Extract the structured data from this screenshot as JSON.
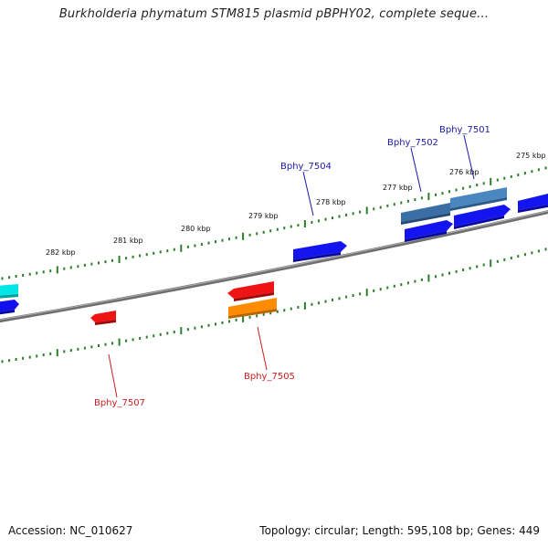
{
  "title": "Burkholderia phymatum STM815 plasmid pBPHY02, complete seque...",
  "footer": {
    "accession": "Accession: NC_010627",
    "topology": "Topology: circular; Length: 595,108 bp; Genes: 449"
  },
  "colors": {
    "backbone": "#808080",
    "tick": "#2e7d2e",
    "forward_label": "#1a1aa6",
    "reverse_label": "#c81e1e"
  },
  "tick_labels": [
    "282 kbp",
    "281 kbp",
    "280 kbp",
    "279 kbp",
    "278 kbp",
    "277 kbp",
    "276 kbp",
    "275 kbp"
  ],
  "gene_labels": {
    "bphy_7501": "Bphy_7501",
    "bphy_7502": "Bphy_7502",
    "bphy_7504": "Bphy_7504",
    "bphy_7505": "Bphy_7505",
    "bphy_7507": "Bphy_7507"
  }
}
